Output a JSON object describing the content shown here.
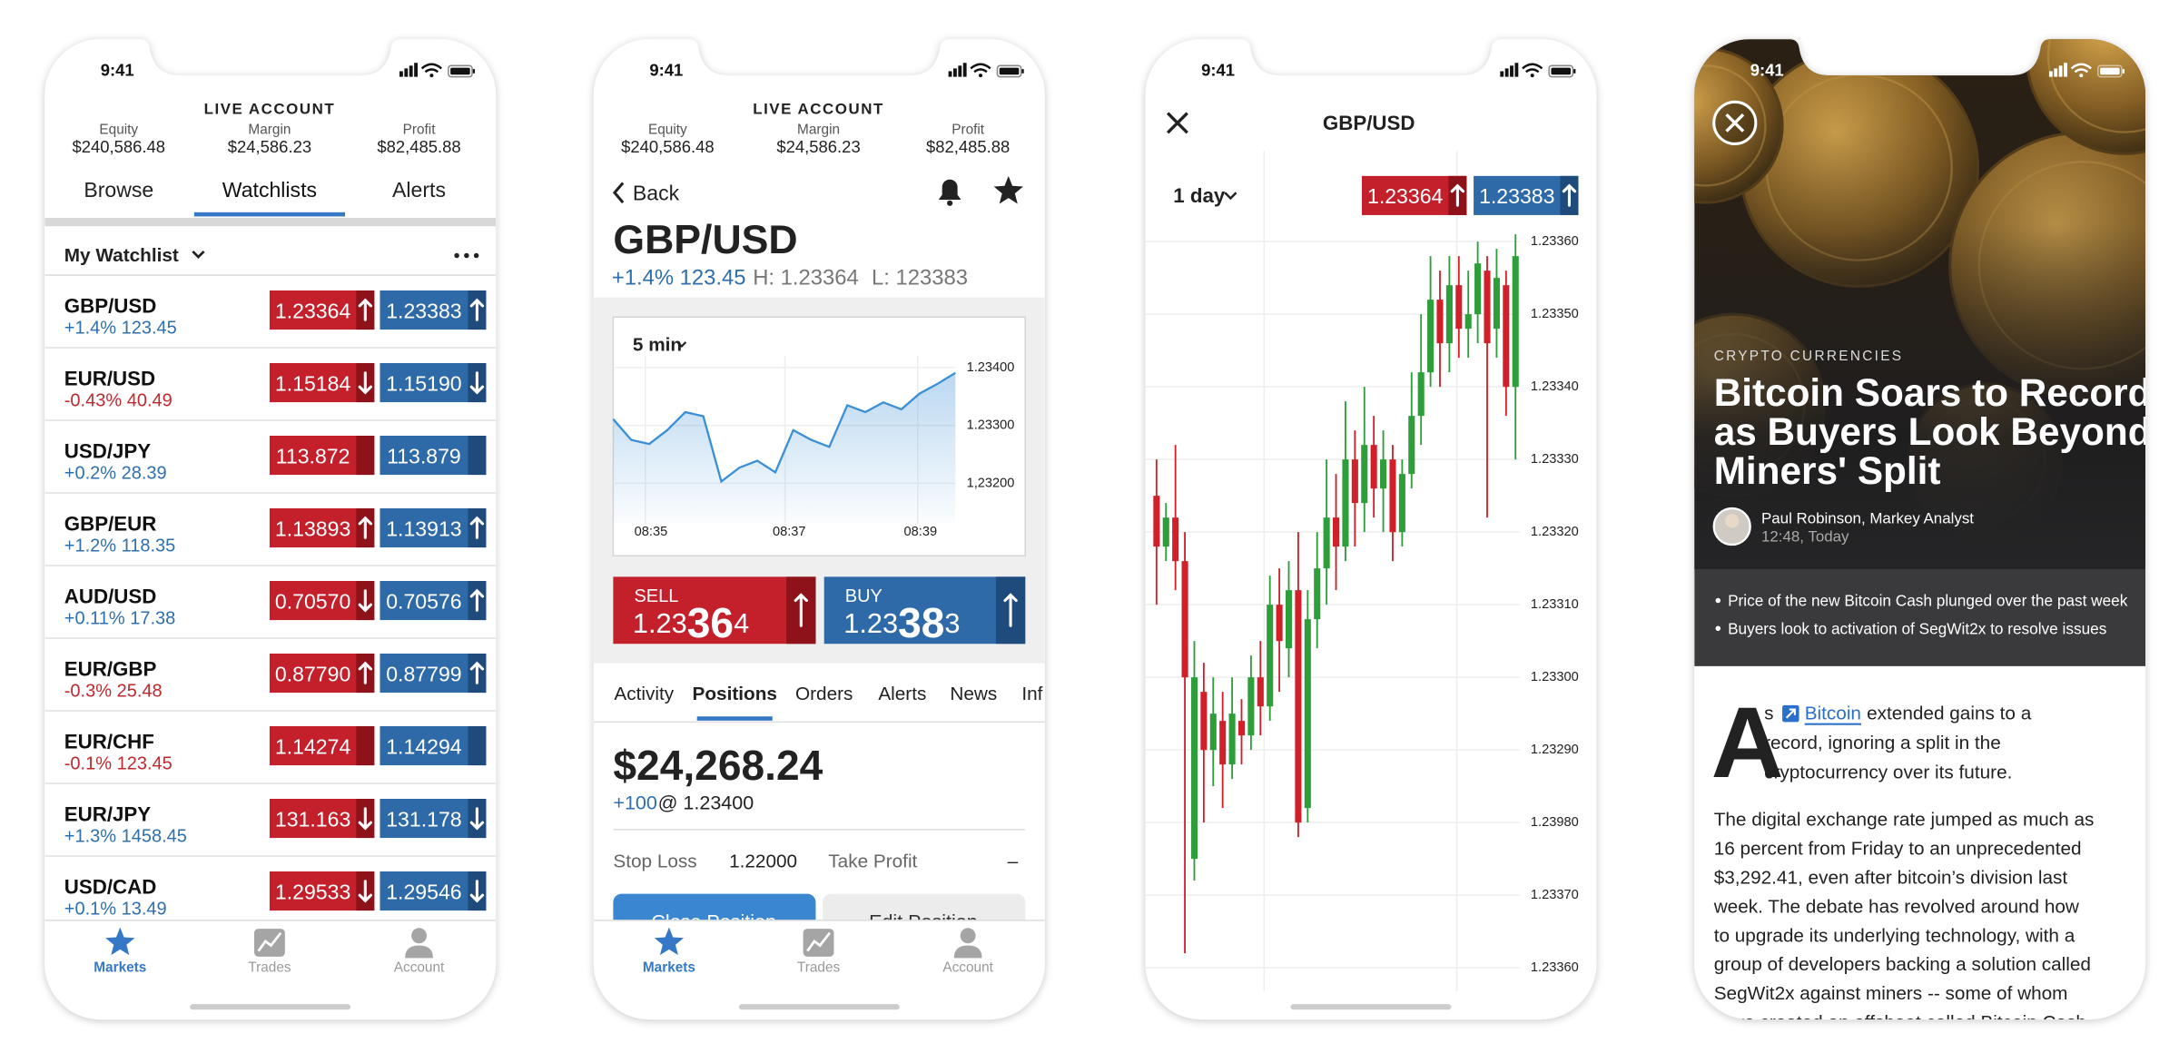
{
  "phones": [
    {
      "status_time": "9:41",
      "account": {
        "title": "LIVE ACCOUNT",
        "equity_label": "Equity",
        "equity": "$240,586.48",
        "margin_label": "Margin",
        "margin": "$24,586.23",
        "profit_label": "Profit",
        "profit": "$82,485.88"
      },
      "tabs": [
        "Browse",
        "Watchlists",
        "Alerts"
      ],
      "active_tab": 1,
      "watchlist": "My Watchlist",
      "rows": [
        {
          "pair": "GBP/USD",
          "change": "+1.4% 123.45",
          "sell": "1.23364",
          "sell_dir": "up",
          "buy": "1.23383",
          "buy_dir": "up"
        },
        {
          "pair": "EUR/USD",
          "change": "-0.43% 40.49",
          "sell": "1.15184",
          "sell_dir": "down",
          "buy": "1.15190",
          "buy_dir": "down"
        },
        {
          "pair": "USD/JPY",
          "change": "+0.2% 28.39",
          "sell": "113.872",
          "sell_dir": "none",
          "buy": "113.879",
          "buy_dir": "none"
        },
        {
          "pair": "GBP/EUR",
          "change": "+1.2% 118.35",
          "sell": "1.13893",
          "sell_dir": "up",
          "buy": "1.13913",
          "buy_dir": "up"
        },
        {
          "pair": "AUD/USD",
          "change": "+0.11% 17.38",
          "sell": "0.70570",
          "sell_dir": "down",
          "buy": "0.70576",
          "buy_dir": "up"
        },
        {
          "pair": "EUR/GBP",
          "change": "-0.3% 25.48",
          "sell": "0.87790",
          "sell_dir": "up",
          "buy": "0.87799",
          "buy_dir": "up"
        },
        {
          "pair": "EUR/CHF",
          "change": "-0.1% 123.45",
          "sell": "1.14274",
          "sell_dir": "none",
          "buy": "1.14294",
          "buy_dir": "none"
        },
        {
          "pair": "EUR/JPY",
          "change": "+1.3% 1458.45",
          "sell": "131.163",
          "sell_dir": "down",
          "buy": "131.178",
          "buy_dir": "down"
        },
        {
          "pair": "USD/CAD",
          "change": "+0.1%  13.49",
          "sell": "1.29533",
          "sell_dir": "down",
          "buy": "1.29546",
          "buy_dir": "down"
        }
      ],
      "nav": [
        "Markets",
        "Trades",
        "Account"
      ]
    },
    {
      "status_time": "9:41",
      "account": {
        "title": "LIVE ACCOUNT",
        "equity_label": "Equity",
        "equity": "$240,586.48",
        "margin_label": "Margin",
        "margin": "$24,586.23",
        "profit_label": "Profit",
        "profit": "$82,485.88"
      },
      "back": "Back",
      "pair": "GBP/USD",
      "change": "+1.4% 123.45",
      "high": "H: 1.23364",
      "low": "L: 123383",
      "interval": "5 min",
      "line": {
        "type": "line",
        "color": "#3a8fd6",
        "values": [
          1.23311,
          1.23275,
          1.23268,
          1.23292,
          1.23323,
          1.23316,
          1.23203,
          1.23227,
          1.23239,
          1.23219,
          1.23292,
          1.23275,
          1.23263,
          1.23335,
          1.23323,
          1.2334,
          1.23328,
          1.23355,
          1.23372,
          1.23391
        ],
        "ylim": [
          1.2313,
          1.2342
        ],
        "yticks": [
          {
            "value": 1.234,
            "label": "1.23400"
          },
          {
            "value": 1.233,
            "label": "1.23300"
          },
          {
            "value": 1.232,
            "label": "1,23200"
          }
        ],
        "xlabels": [
          "08:35",
          "08:37",
          "08:39"
        ],
        "grid": true
      },
      "sell": {
        "label": "SELL",
        "price": [
          "1.23",
          "36",
          "4"
        ],
        "dir": "up"
      },
      "buy": {
        "label": "BUY",
        "price": [
          "1.23",
          "38",
          "3"
        ],
        "dir": "up"
      },
      "tabs": [
        "Activity",
        "Positions",
        "Orders",
        "Alerts",
        "News",
        "Inf"
      ],
      "active_tab": 1,
      "position": {
        "amount": "$24,268.24",
        "quantity": "+100",
        "price": "@ 1.23400",
        "stop_loss_label": "Stop Loss",
        "stop_loss": "1.22000",
        "take_profit_label": "Take Profit",
        "take_profit": "–"
      },
      "buttons": [
        "Close Position",
        "Edit Position"
      ],
      "nav": [
        "Markets",
        "Trades",
        "Account"
      ]
    },
    {
      "status_time": "9:41",
      "title": "GBP/USD",
      "interval": "1 day",
      "sell": "1.23364",
      "sell_dir": "up",
      "buy": "1.23383",
      "buy_dir": "up",
      "chart": {
        "type": "candlestick",
        "up_color": "#2e9e3a",
        "down_color": "#d0202a",
        "ylim": [
          1.2326,
          1.2337
        ],
        "yaxis_labels": [
          "1.23360",
          "1.23350",
          "1.23340",
          "1.23330",
          "1.23320",
          "1.23310",
          "1.23300",
          "1.23290",
          "1.23980",
          "1.23370",
          "1.23360"
        ],
        "open": [
          1.23325,
          1.23318,
          1.23322,
          1.23316,
          1.23275,
          1.23298,
          1.2329,
          1.23294,
          1.23288,
          1.23294,
          1.23292,
          1.233,
          1.23296,
          1.2331,
          1.23304,
          1.23312,
          1.23282,
          1.23308,
          1.23315,
          1.23322,
          1.23318,
          1.2333,
          1.23324,
          1.23332,
          1.23326,
          1.2333,
          1.2332,
          1.23328,
          1.23336,
          1.23342,
          1.23352,
          1.23346,
          1.23354,
          1.23348,
          1.2335,
          1.23356,
          1.23348,
          1.23354,
          1.2334
        ],
        "close": [
          1.23318,
          1.23322,
          1.23316,
          1.233,
          1.233,
          1.2329,
          1.23295,
          1.23288,
          1.23295,
          1.23292,
          1.233,
          1.23296,
          1.2331,
          1.23305,
          1.23312,
          1.2328,
          1.23308,
          1.23315,
          1.23322,
          1.23318,
          1.2333,
          1.23324,
          1.23332,
          1.23326,
          1.2333,
          1.2332,
          1.23328,
          1.23336,
          1.23342,
          1.23352,
          1.23346,
          1.23354,
          1.23348,
          1.2335,
          1.23357,
          1.23346,
          1.23355,
          1.2334,
          1.23358
        ],
        "high": [
          1.2333,
          1.23324,
          1.23332,
          1.2332,
          1.23305,
          1.23302,
          1.233,
          1.23298,
          1.233,
          1.23297,
          1.23303,
          1.23305,
          1.23314,
          1.23315,
          1.23316,
          1.2332,
          1.23312,
          1.2332,
          1.2333,
          1.23328,
          1.23338,
          1.23334,
          1.2334,
          1.23336,
          1.23334,
          1.23332,
          1.2333,
          1.23342,
          1.2335,
          1.23358,
          1.23356,
          1.23358,
          1.23358,
          1.23356,
          1.2336,
          1.23358,
          1.23359,
          1.23356,
          1.23361
        ],
        "low": [
          1.2331,
          1.23316,
          1.23312,
          1.23262,
          1.23272,
          1.2328,
          1.23285,
          1.23282,
          1.23286,
          1.23288,
          1.2329,
          1.23292,
          1.23294,
          1.23298,
          1.233,
          1.23278,
          1.2328,
          1.23304,
          1.2331,
          1.23312,
          1.23316,
          1.23318,
          1.2332,
          1.23322,
          1.2332,
          1.23316,
          1.23318,
          1.23326,
          1.23332,
          1.2334,
          1.2334,
          1.23342,
          1.23344,
          1.23344,
          1.23346,
          1.23322,
          1.23344,
          1.23336,
          1.2333
        ]
      }
    },
    {
      "status_time": "9:41",
      "category": "CRYPTO CURRENCIES",
      "headline": [
        "Bitcoin Soars to Record",
        "as Buyers Look Beyond",
        "Miners' Split"
      ],
      "author": "Paul Robinson, Markey Analyst",
      "time": "12:48, Today",
      "bullets": [
        "Price of the new Bitcoin Cash plunged over the past week",
        "Buyers look to activation of SegWit2x to resolve issues"
      ],
      "dropcap": "A",
      "lead_first": "s",
      "lead_link": "Bitcoin",
      "lead_rest": "extended gains to a",
      "lead_lines": [
        "record, ignoring a split in the",
        "cryptocurrency over its future."
      ],
      "body": [
        "The digital exchange rate jumped as much as",
        "16 percent from Friday to an unprecedented",
        "$3,292.41, even after bitcoin’s division last",
        "week. The debate has revolved around how",
        "to upgrade its underlying technology, with a",
        "group of developers backing a solution called",
        "SegWit2x against miners -- some of whom",
        "have created an offshoot called Bitcoin Cash"
      ]
    }
  ]
}
